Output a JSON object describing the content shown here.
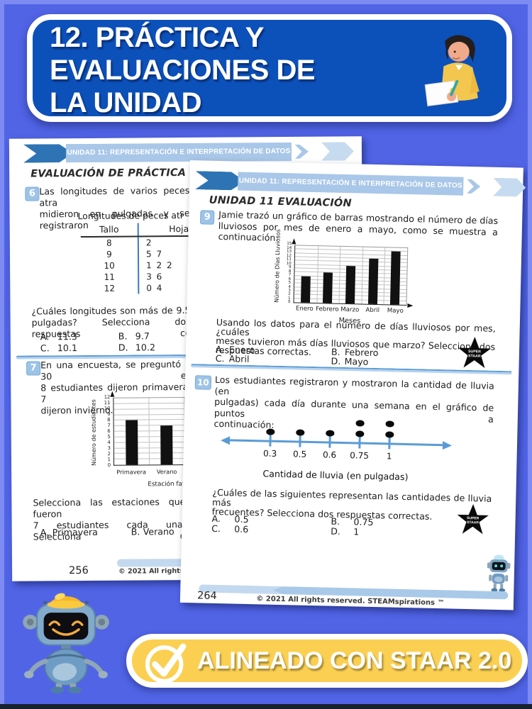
{
  "title_banner": {
    "line1": "12. PRÁCTICA Y",
    "line2": "EVALUACIONES DE",
    "line3": "LA UNIDAD"
  },
  "footer_banner": {
    "label": "ALINEADO CON STAAR 2.0"
  },
  "star_badge": {
    "line1": "SUPER",
    "line2": "STAAR"
  },
  "left_page": {
    "header_banner": "UNIDAD 11: REPRESENTACIÓN E INTERPRETACIÓN DE DATOS",
    "section_title": "EVALUACIÓN DE PRÁCTICA",
    "page_number": "256",
    "copyright": "© 2021 All rights reser",
    "q6": {
      "number": "6",
      "text_line1": "Las longitudes de varios peces atra",
      "text_line2": "midieron en pulgadas y se registraron",
      "table_title": "Longitudes de peces atr",
      "table": {
        "col1": "Tallo",
        "col2": "Hoja",
        "rows": [
          [
            "8",
            "2"
          ],
          [
            "9",
            "5 7"
          ],
          [
            "10",
            "1 2 2"
          ],
          [
            "11",
            "3 6"
          ],
          [
            "12",
            "0 4"
          ]
        ]
      },
      "question_line1": "¿Cuáles longitudes son más de 9.5",
      "question_line2": "pulgadas? Selecciona dos respuestas co",
      "answers": [
        [
          "A.",
          "11.3"
        ],
        [
          "B.",
          "9.7"
        ],
        [
          "C.",
          "10.1"
        ],
        [
          "D.",
          "10.2"
        ]
      ]
    },
    "q7": {
      "number": "7",
      "text_line1": "En una encuesta, se preguntó a 30 es",
      "text_line2": "8 estudiantes dijeron primavera, 7 d",
      "text_line3": "dijeron invierno.",
      "followup_line1": "Selecciona las estaciones que fueron",
      "followup_line2": "7 estudiantes cada una. Selecciona d",
      "answers": [
        [
          "A.",
          "Primavera"
        ],
        [
          "B.",
          "Verano"
        ]
      ]
    }
  },
  "right_page": {
    "header_banner": "UNIDAD 11: REPRESENTACIÓN E INTERPRETACIÓN DE DATOS",
    "section_title": "UNIDAD 11 EVALUACIÓN",
    "page_number": "264",
    "copyright": "© 2021 All rights reserved. STEAMspirations ™",
    "q9": {
      "number": "9",
      "text_line1": "Jamie trazó un gráfico de barras mostrando el número de días",
      "text_line2": "lluviosos por mes de enero a mayo, como se muestra a continuación:",
      "question_line1": "Usando los datos para el número de días lluviosos por mes, ¿cuáles",
      "question_line2": "meses tuvieron más días lluviosos que marzo? Selecciona dos",
      "question_line3": "respuestas correctas.",
      "answers": [
        [
          "A.",
          "Enero"
        ],
        [
          "B.",
          "Febrero"
        ],
        [
          "C.",
          "Abril"
        ],
        [
          "D.",
          "Mayo"
        ]
      ]
    },
    "q10": {
      "number": "10",
      "text_line1": "Los estudiantes registraron y mostraron la cantidad de lluvia (en",
      "text_line2": "pulgadas) cada día durante una semana en el gráfico de puntos a",
      "text_line3": "continuación:",
      "question_line1": "¿Cuáles de las siguientes representan las cantidades de lluvia más",
      "question_line2": "frecuentes? Selecciona dos respuestas correctas.",
      "answers": [
        [
          "A.",
          "0.5"
        ],
        [
          "B.",
          "0.75"
        ],
        [
          "C.",
          "0.6"
        ],
        [
          "D.",
          "1"
        ]
      ]
    }
  },
  "chart_data": [
    {
      "id": "estacion-favorita",
      "type": "bar",
      "categories": [
        "Primavera",
        "Verano"
      ],
      "values": [
        8,
        7
      ],
      "title": "",
      "ylabel": "Número de estudiantes",
      "xlabel": "Estación fav",
      "ylim": [
        0,
        12
      ],
      "ytick_step": 1,
      "grid": true,
      "legend": "none"
    },
    {
      "id": "dias-lluviosos",
      "type": "bar",
      "categories": [
        "Enero",
        "Febrero",
        "Marzo",
        "Abril",
        "Mayo"
      ],
      "values": [
        7,
        8,
        10,
        12,
        14
      ],
      "title": "",
      "ylabel": "Número de Días Lluviosos",
      "xlabel": "Meses",
      "ylim": [
        0,
        15
      ],
      "ytick_step": 1,
      "grid": true,
      "legend": "none"
    },
    {
      "id": "cantidad-lluvia",
      "type": "dot",
      "x": [
        0.3,
        0.5,
        0.6,
        0.75,
        1
      ],
      "counts": [
        1,
        1,
        1,
        2,
        2
      ],
      "xlabel": "Cantidad de lluvia (en pulgadas)"
    }
  ],
  "colors": {
    "background": "#5164e6",
    "title_card": "#0c50ba",
    "banner_bar": "#a9c7e8",
    "banner_arrow": "#2e74b5",
    "divider": "#5b9bd5",
    "badge": "#9dc3e6",
    "footer_banner_yellow": "#fbd052",
    "dotplot_line": "#5b9bd5",
    "bar_fill": "#111111"
  }
}
